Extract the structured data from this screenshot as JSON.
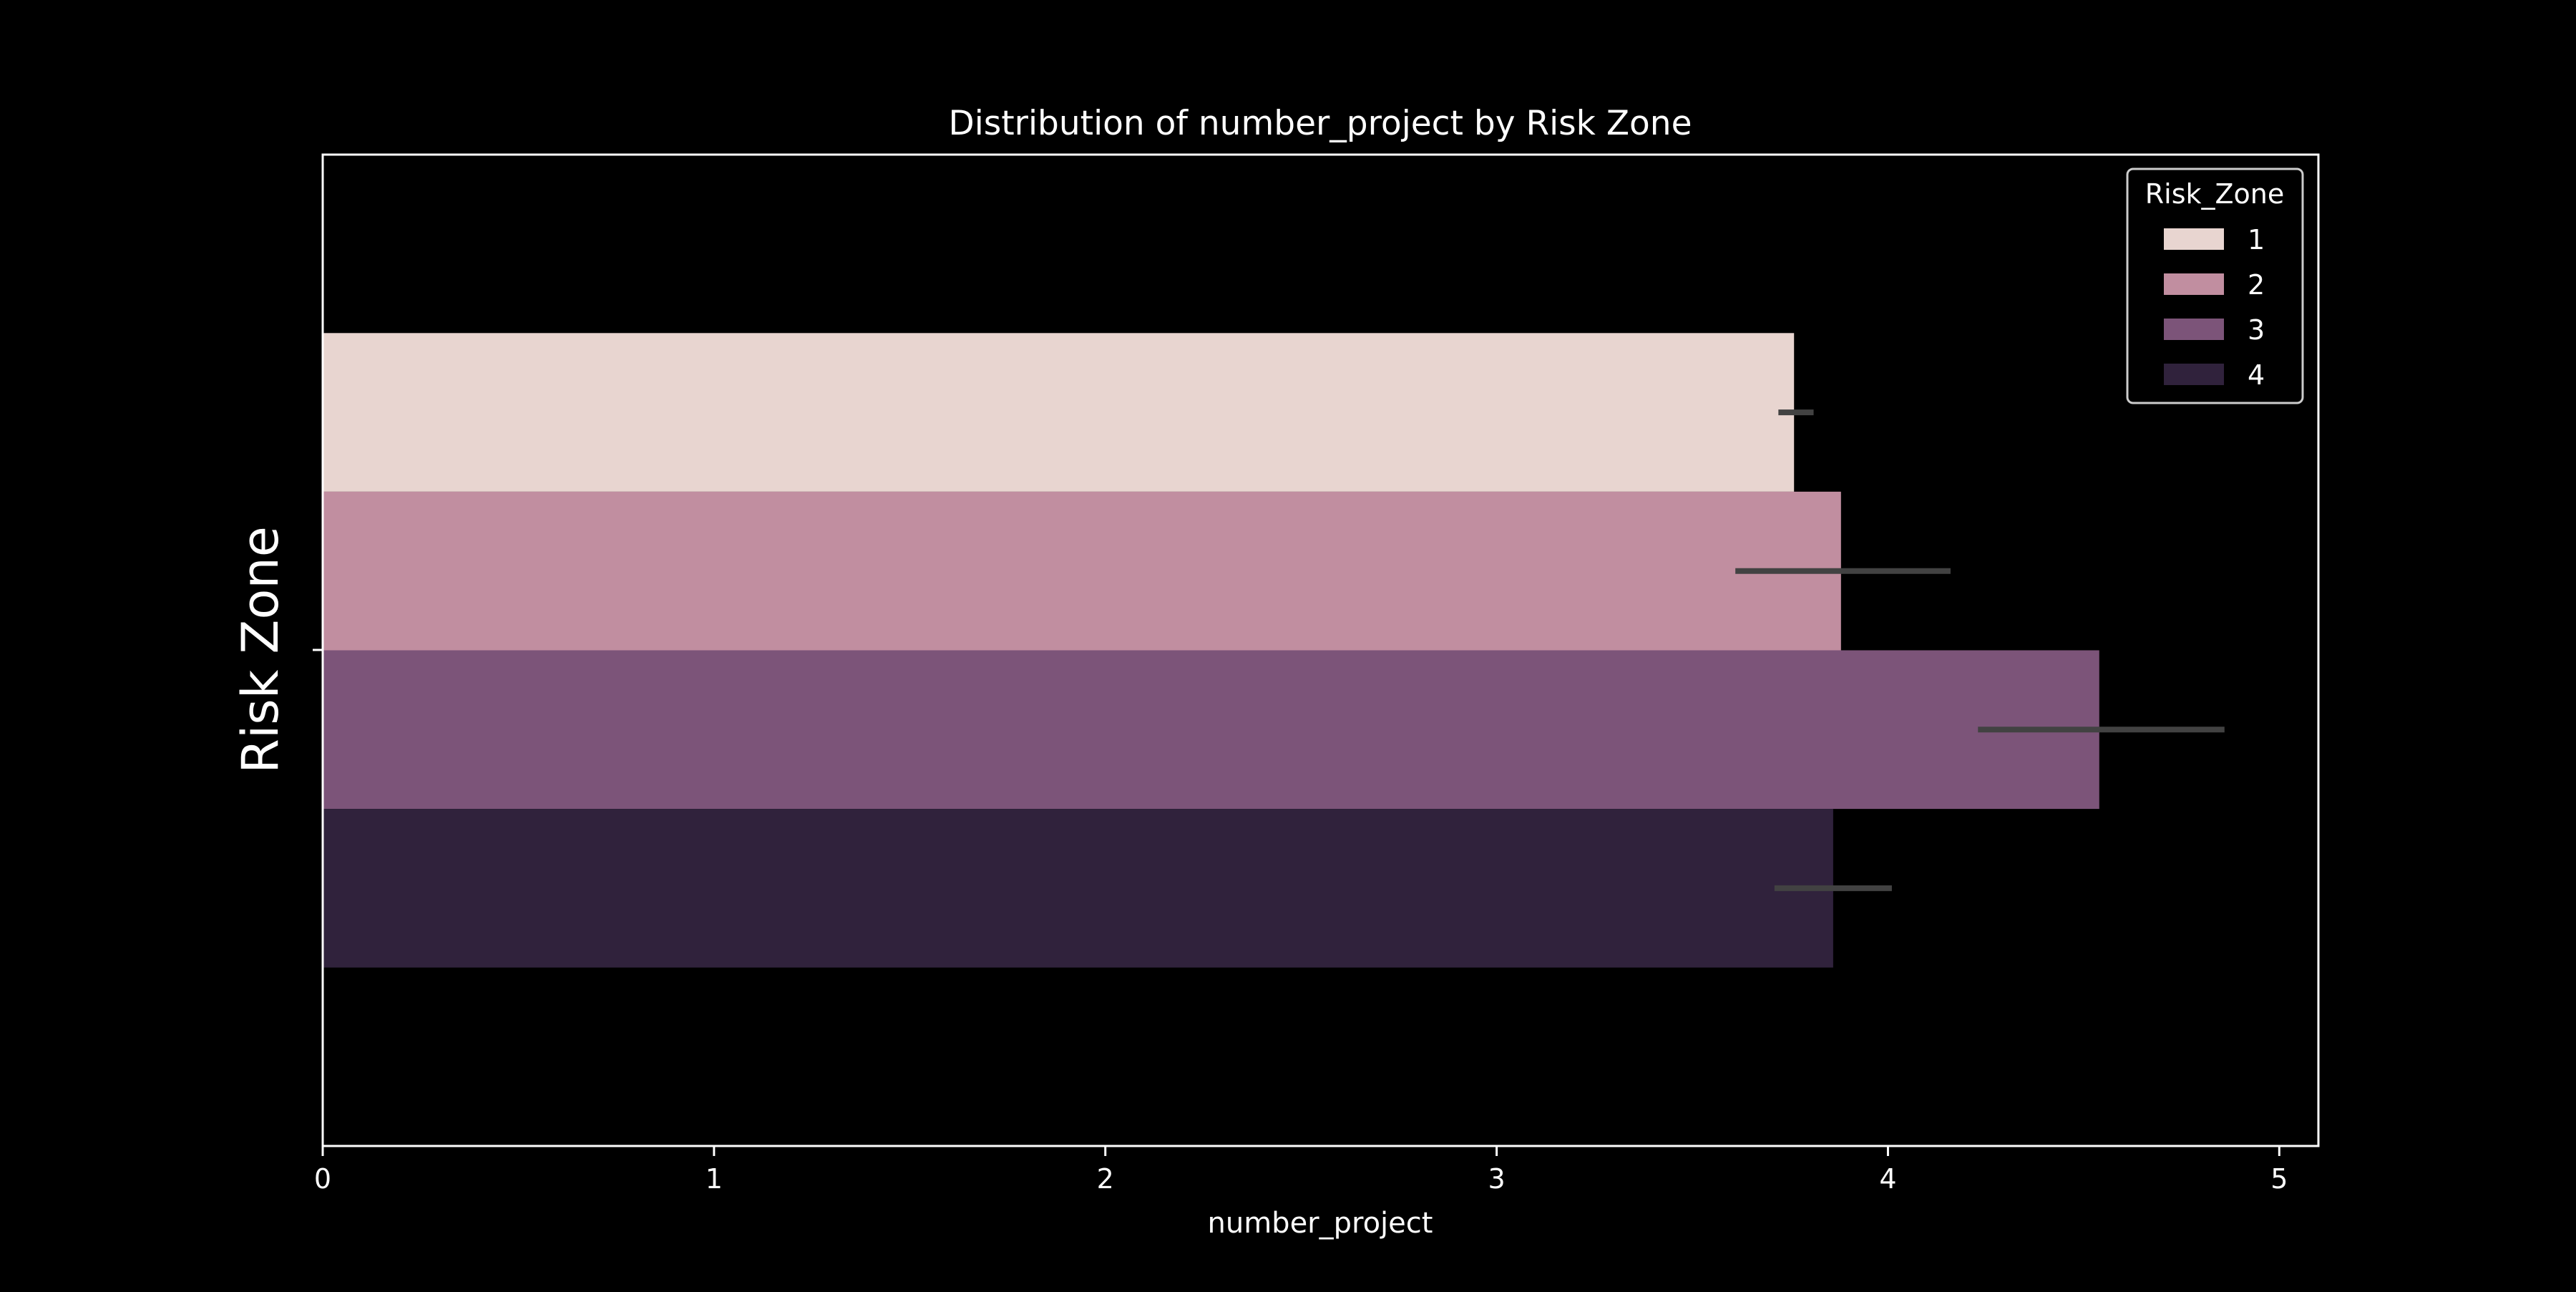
{
  "chart_data": {
    "type": "bar",
    "orientation": "horizontal",
    "title": "Distribution of number_project by Risk Zone",
    "xlabel": "number_project",
    "ylabel": "Risk Zone",
    "xlim": [
      0,
      5.1
    ],
    "xticks": [
      "0",
      "1",
      "2",
      "3",
      "4",
      "5"
    ],
    "grid": false,
    "legend": {
      "title": "Risk_Zone",
      "placement": "top-right"
    },
    "series": [
      {
        "name": "1",
        "value": 3.76,
        "ci": [
          3.72,
          3.81
        ],
        "color": "#e8d5d0"
      },
      {
        "name": "2",
        "value": 3.88,
        "ci": [
          3.61,
          4.16
        ],
        "color": "#c18ea0"
      },
      {
        "name": "3",
        "value": 4.54,
        "ci": [
          4.23,
          4.86
        ],
        "color": "#7c5479"
      },
      {
        "name": "4",
        "value": 3.86,
        "ci": [
          3.71,
          4.01
        ],
        "color": "#30223c"
      }
    ],
    "errorbar_color": "#424242",
    "axis_color": "#ffffff",
    "background": "#000000"
  }
}
